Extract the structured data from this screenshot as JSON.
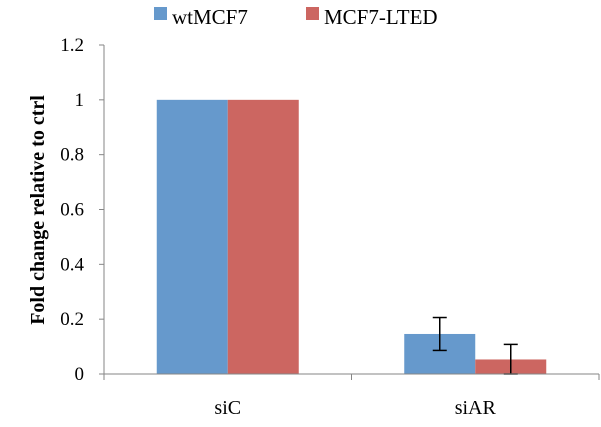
{
  "chart_data": {
    "type": "bar",
    "title": "",
    "xlabel": "",
    "ylabel": "Fold change relative to ctrl",
    "ylim": [
      0,
      1.2
    ],
    "yticks": [
      "0",
      "0.2",
      "0.4",
      "0.6",
      "0.8",
      "1",
      "1.2"
    ],
    "categories": [
      "siC",
      "siAR"
    ],
    "series": [
      {
        "name": "wtMCF7",
        "color": "#6699CC",
        "values": [
          1.0,
          0.146
        ],
        "errors": [
          0,
          0.06
        ]
      },
      {
        "name": "MCF7-LTED",
        "color": "#CC6661",
        "values": [
          1.0,
          0.053
        ],
        "errors": [
          0,
          0.055
        ]
      }
    ],
    "grid": false,
    "legend": "top"
  }
}
